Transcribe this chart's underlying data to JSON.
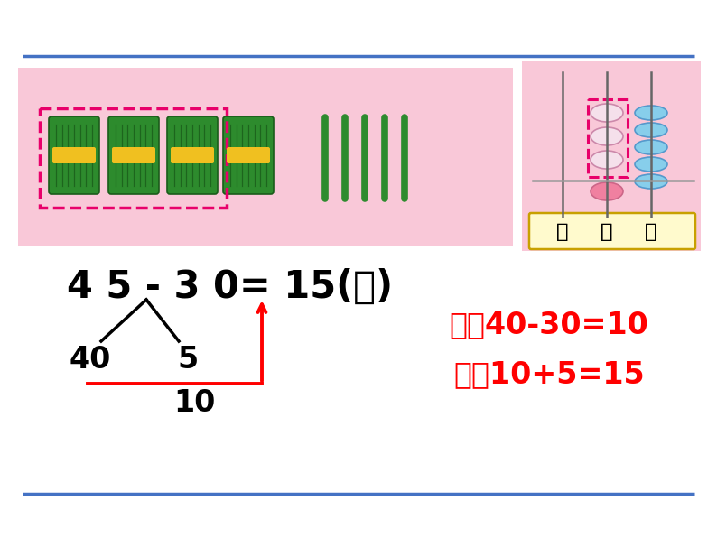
{
  "bg_color": "#ffffff",
  "top_line_color": "#4472c4",
  "bottom_line_color": "#4472c4",
  "pink_box_color": "#f9c8d8",
  "abacus_bg": "#f9c8d8",
  "main_equation": "4 5 - 3 0= 15(个)",
  "label_40": "40",
  "label_5": "5",
  "label_10": "10",
  "hint_line1": "先算40-30=10",
  "hint_line2": "再算10+5=15",
  "eq_color": "#000000",
  "hint_color": "#ff0000",
  "red_line_color": "#ff0000",
  "dashed_box_color": "#e8006a",
  "bundle_green": "#2d8b2d",
  "bundle_dark": "#1a5c1a",
  "bundle_yellow": "#f0c020",
  "stick_green": "#2e8b2e",
  "abacus_tens_bead": "#f0d0e0",
  "abacus_tens_bead_below": "#f080a0",
  "abacus_ones_bead": "#87ceeb",
  "abacus_rod_color": "#666666",
  "abacus_label_bg": "#fffacd",
  "abacus_label_border": "#c8a000"
}
